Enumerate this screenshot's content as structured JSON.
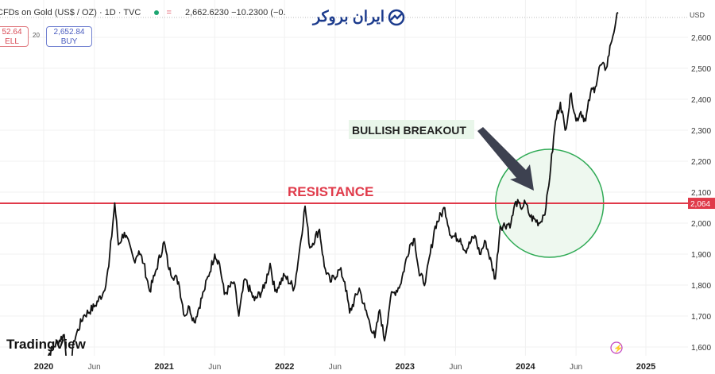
{
  "header": {
    "symbol": "CFDs on Gold (US$ / OZ) · 1D · TVC",
    "status_eq": "=",
    "quote": "2,662.6230  −10.2300 (−0.",
    "sell_price": "52.64",
    "sell_label": "ELL",
    "spread": "20",
    "buy_price": "2,652.84",
    "buy_label": "BUY"
  },
  "watermark_logo": "ایران بروکر",
  "tradingview_logo": "TradingView",
  "currency": "USD",
  "colors": {
    "line": "#111111",
    "resistance": "#e03a4a",
    "circle": "#2faa55",
    "circle_fill": "#eef8ef",
    "arrow": "#3d4150",
    "label_bg": "#e9f6ea"
  },
  "chart_data": {
    "type": "line",
    "title": "CFDs on Gold (US$ / OZ) · 1D · TVC",
    "xlabel": "",
    "ylabel": "USD",
    "ylim": [
      1600,
      2600
    ],
    "xlim": [
      2019.95,
      2025.3
    ],
    "y_ticks": [
      "1,600",
      "1,700",
      "1,800",
      "1,900",
      "2,000",
      "2,100",
      "2,200",
      "2,300",
      "2,400",
      "2,500",
      "2,600"
    ],
    "y_tick_values": [
      1600,
      1700,
      1800,
      1900,
      2000,
      2100,
      2200,
      2300,
      2400,
      2500,
      2600
    ],
    "x_ticks": [
      {
        "label": "2020",
        "x": 2020.0,
        "bold": true
      },
      {
        "label": "Jun",
        "x": 2020.42,
        "bold": false
      },
      {
        "label": "2021",
        "x": 2021.0,
        "bold": true
      },
      {
        "label": "Jun",
        "x": 2021.42,
        "bold": false
      },
      {
        "label": "2022",
        "x": 2022.0,
        "bold": true
      },
      {
        "label": "Jun",
        "x": 2022.42,
        "bold": false
      },
      {
        "label": "2023",
        "x": 2023.0,
        "bold": true
      },
      {
        "label": "Jun",
        "x": 2023.42,
        "bold": false
      },
      {
        "label": "2024",
        "x": 2024.0,
        "bold": true
      },
      {
        "label": "Jun",
        "x": 2024.42,
        "bold": false
      },
      {
        "label": "2025",
        "x": 2025.0,
        "bold": true
      }
    ],
    "series": [
      {
        "name": "Gold",
        "points": [
          [
            2020.0,
            1550
          ],
          [
            2020.08,
            1600
          ],
          [
            2020.17,
            1640
          ],
          [
            2020.21,
            1480
          ],
          [
            2020.25,
            1620
          ],
          [
            2020.33,
            1700
          ],
          [
            2020.42,
            1730
          ],
          [
            2020.5,
            1780
          ],
          [
            2020.54,
            1860
          ],
          [
            2020.59,
            2065
          ],
          [
            2020.62,
            1930
          ],
          [
            2020.67,
            1970
          ],
          [
            2020.75,
            1880
          ],
          [
            2020.79,
            1910
          ],
          [
            2020.83,
            1870
          ],
          [
            2020.88,
            1780
          ],
          [
            2020.92,
            1830
          ],
          [
            2021.0,
            1940
          ],
          [
            2021.04,
            1850
          ],
          [
            2021.12,
            1810
          ],
          [
            2021.17,
            1700
          ],
          [
            2021.21,
            1730
          ],
          [
            2021.25,
            1680
          ],
          [
            2021.33,
            1780
          ],
          [
            2021.42,
            1900
          ],
          [
            2021.46,
            1870
          ],
          [
            2021.5,
            1770
          ],
          [
            2021.58,
            1810
          ],
          [
            2021.62,
            1700
          ],
          [
            2021.67,
            1820
          ],
          [
            2021.75,
            1750
          ],
          [
            2021.83,
            1790
          ],
          [
            2021.88,
            1870
          ],
          [
            2021.92,
            1780
          ],
          [
            2022.0,
            1830
          ],
          [
            2022.08,
            1790
          ],
          [
            2022.12,
            1900
          ],
          [
            2022.17,
            2055
          ],
          [
            2022.21,
            1920
          ],
          [
            2022.29,
            1980
          ],
          [
            2022.33,
            1860
          ],
          [
            2022.38,
            1810
          ],
          [
            2022.46,
            1850
          ],
          [
            2022.5,
            1810
          ],
          [
            2022.54,
            1710
          ],
          [
            2022.62,
            1790
          ],
          [
            2022.67,
            1720
          ],
          [
            2022.75,
            1630
          ],
          [
            2022.79,
            1720
          ],
          [
            2022.83,
            1620
          ],
          [
            2022.88,
            1760
          ],
          [
            2022.96,
            1800
          ],
          [
            2023.04,
            1930
          ],
          [
            2023.08,
            1950
          ],
          [
            2023.12,
            1830
          ],
          [
            2023.17,
            1810
          ],
          [
            2023.25,
            1990
          ],
          [
            2023.33,
            2050
          ],
          [
            2023.38,
            1960
          ],
          [
            2023.46,
            1950
          ],
          [
            2023.5,
            1910
          ],
          [
            2023.58,
            1960
          ],
          [
            2023.62,
            1900
          ],
          [
            2023.67,
            1940
          ],
          [
            2023.75,
            1820
          ],
          [
            2023.79,
            1990
          ],
          [
            2023.88,
            2000
          ],
          [
            2023.92,
            2070
          ],
          [
            2023.96,
            2050
          ],
          [
            2024.0,
            2065
          ],
          [
            2024.04,
            2020
          ],
          [
            2024.12,
            2000
          ],
          [
            2024.17,
            2050
          ],
          [
            2024.21,
            2180
          ],
          [
            2024.25,
            2330
          ],
          [
            2024.29,
            2390
          ],
          [
            2024.33,
            2300
          ],
          [
            2024.38,
            2420
          ],
          [
            2024.42,
            2330
          ],
          [
            2024.46,
            2360
          ],
          [
            2024.5,
            2330
          ],
          [
            2024.54,
            2420
          ],
          [
            2024.58,
            2440
          ],
          [
            2024.62,
            2510
          ],
          [
            2024.67,
            2500
          ],
          [
            2024.71,
            2580
          ],
          [
            2024.75,
            2650
          ],
          [
            2024.77,
            2680
          ]
        ]
      }
    ],
    "horizontal_line": {
      "label": "RESISTANCE",
      "value": 2064,
      "price_tag": "2,064"
    },
    "annotations": [
      {
        "text": "BULLISH BREAKOUT",
        "arrow_to": [
          2024.08,
          2060
        ]
      },
      {
        "type": "circle",
        "center": [
          2024.2,
          2064
        ],
        "note": "breakout zone"
      }
    ],
    "grid": true
  }
}
